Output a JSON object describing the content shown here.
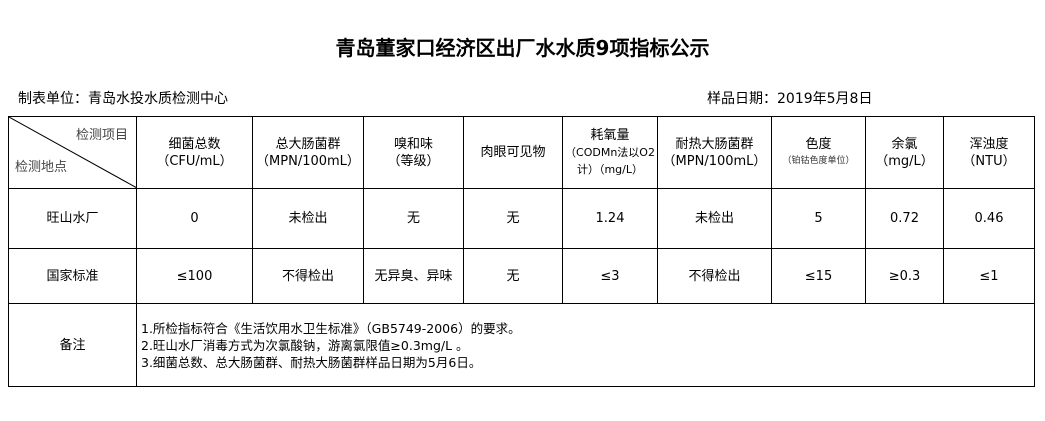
{
  "title": "青岛董家口经济区出厂水水质9项指标公示",
  "unit": "制表单位：青岛水投水质检测中心",
  "date": "样品日期：2019年5月8日",
  "corner": {
    "top": "检测项目",
    "bottom": "检测地点"
  },
  "headers": [
    {
      "name": "细菌总数",
      "unit": "（CFU/mL）"
    },
    {
      "name": "总大肠菌群",
      "unit": "（MPN/100mL）"
    },
    {
      "name": "嗅和味",
      "unit": "（等级）"
    },
    {
      "name": "肉眼可见物",
      "unit": ""
    },
    {
      "name": "耗氧量",
      "unit": "（CODMn法以O2",
      "unit2": "计）（mg/L）"
    },
    {
      "name": "耐热大肠菌群",
      "unit": "（MPN/100mL）"
    },
    {
      "name": "色度",
      "unit": "（铂钴色度单位）"
    },
    {
      "name": "余氯",
      "unit": "（mg/L）"
    },
    {
      "name": "浑浊度",
      "unit": "（NTU）"
    }
  ],
  "rows": [
    {
      "label": "旺山水厂",
      "values": [
        "0",
        "未检出",
        "无",
        "无",
        "1.24",
        "未检出",
        "5",
        "0.72",
        "0.46"
      ]
    },
    {
      "label": "国家标准",
      "values": [
        "≤100",
        "不得检出",
        "无异臭、异味",
        "无",
        "≤3",
        "不得检出",
        "≤15",
        "≥0.3",
        "≤1"
      ]
    }
  ],
  "notes": {
    "label": "备注",
    "lines": [
      "1.所检指标符合《生活饮用水卫生标准》（GB5749-2006）的要求。",
      "2.旺山水厂消毒方式为次氯酸钠，游离氯限值≥0.3mg/L 。",
      "3.细菌总数、总大肠菌群、耐热大肠菌群样品日期为5月6日。"
    ]
  }
}
